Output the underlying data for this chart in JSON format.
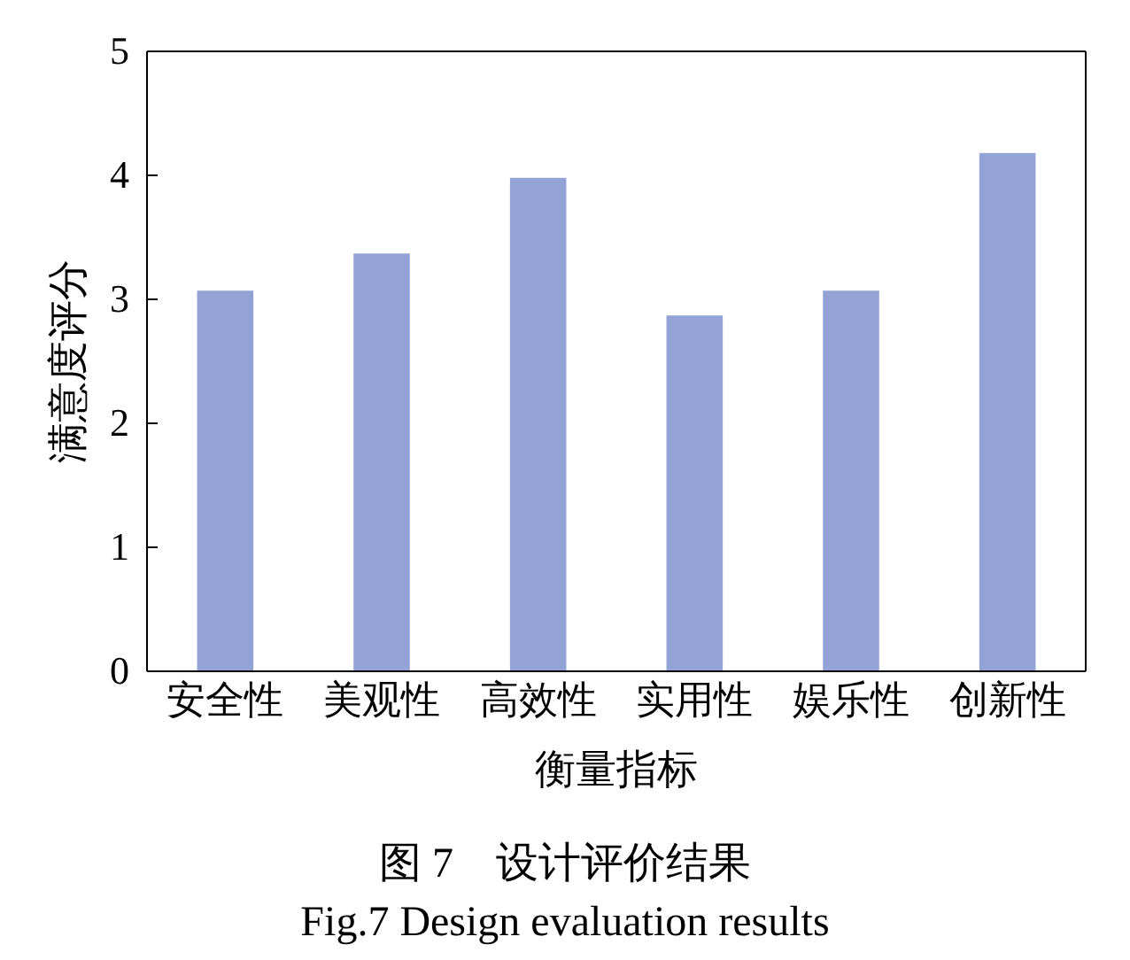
{
  "chart_data": {
    "type": "bar",
    "title": "图 7　设计评价结果",
    "subtitle": "Fig.7 Design evaluation results",
    "xlabel": "衡量指标",
    "ylabel": "满意度评分",
    "categories": [
      "安全性",
      "美观性",
      "高效性",
      "实用性",
      "娱乐性",
      "创新性"
    ],
    "values": [
      3.07,
      3.37,
      3.98,
      2.87,
      3.07,
      4.18
    ],
    "color": "#94a3d6",
    "ylim": [
      0,
      5
    ],
    "yticks": [
      0,
      1,
      2,
      3,
      4,
      5
    ],
    "grid": false
  }
}
